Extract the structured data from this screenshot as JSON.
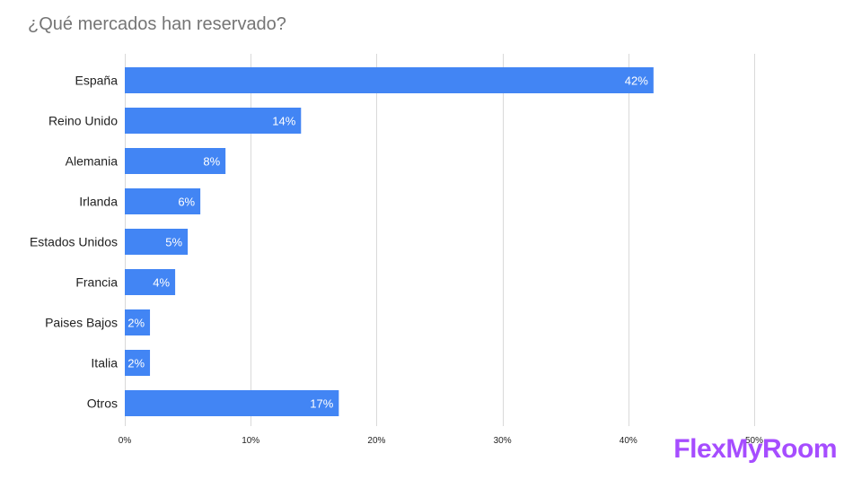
{
  "chart_data": {
    "type": "bar",
    "orientation": "horizontal",
    "title": "¿Qué mercados han reservado?",
    "categories": [
      "España",
      "Reino Unido",
      "Alemania",
      "Irlanda",
      "Estados Unidos",
      "Francia",
      "Paises Bajos",
      "Italia",
      "Otros"
    ],
    "values": [
      42,
      14,
      8,
      6,
      5,
      4,
      2,
      2,
      17
    ],
    "data_labels": [
      "42%",
      "14%",
      "8%",
      "6%",
      "5%",
      "4%",
      "2%",
      "2%",
      "17%"
    ],
    "xlim": [
      0,
      50
    ],
    "x_ticks": [
      0,
      10,
      20,
      30,
      40,
      50
    ],
    "x_tick_labels": [
      "0%",
      "10%",
      "20%",
      "30%",
      "40%",
      "50%"
    ],
    "xlabel": "",
    "ylabel": "",
    "grid": true,
    "colors": {
      "bar": "#4285f4",
      "grid": "#d9d9d9",
      "label": "#222222",
      "title": "#757575",
      "data_label": "#ffffff"
    }
  },
  "brand": {
    "logo_text": "FlexMyRoom",
    "color": "#a64dff"
  }
}
